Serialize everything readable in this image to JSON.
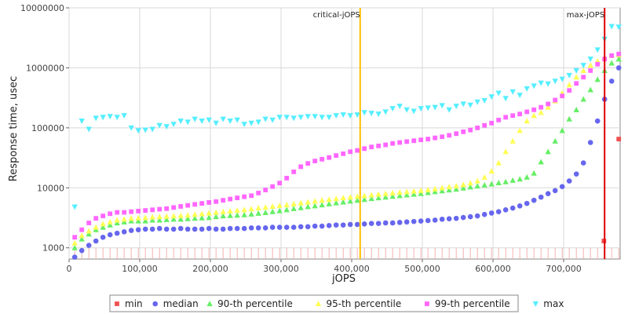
{
  "chart_data": {
    "type": "scatter",
    "xlabel": "jOPS",
    "ylabel": "Response time, usec",
    "x_scale": "linear",
    "y_scale": "log",
    "xlim": [
      0,
      780000
    ],
    "ylim": [
      650,
      10000000
    ],
    "x_ticks": [
      0,
      100000,
      200000,
      300000,
      400000,
      500000,
      600000,
      700000
    ],
    "x_tick_labels": [
      "0",
      "100,000",
      "200,000",
      "300,000",
      "400,000",
      "500,000",
      "600,000",
      "700,000"
    ],
    "y_ticks": [
      1000,
      10000,
      100000,
      1000000,
      10000000
    ],
    "y_tick_labels": [
      "1000",
      "10000",
      "100000",
      "1000000",
      "10000000"
    ],
    "grid": true,
    "legend_position": "bottom",
    "vertical_markers": [
      {
        "label": "critical-jOPS",
        "x": 412000,
        "color": "#ffc000"
      },
      {
        "label": "max-jOPS",
        "x": 758000,
        "color": "#dd0000"
      }
    ],
    "series": [
      {
        "name": "min",
        "color": "#f05050",
        "marker": "square",
        "x": [
          757000,
          778000
        ],
        "y": [
          1300,
          65000
        ]
      },
      {
        "name": "median",
        "color": "#6666ee",
        "marker": "circle",
        "x": [
          8000,
          18000,
          28000,
          38000,
          48000,
          58000,
          68000,
          78000,
          88000,
          98000,
          108000,
          118000,
          128000,
          138000,
          148000,
          158000,
          168000,
          178000,
          188000,
          198000,
          208000,
          218000,
          228000,
          238000,
          248000,
          258000,
          268000,
          278000,
          288000,
          298000,
          308000,
          318000,
          328000,
          338000,
          348000,
          358000,
          368000,
          378000,
          388000,
          398000,
          408000,
          418000,
          428000,
          438000,
          448000,
          458000,
          468000,
          478000,
          488000,
          498000,
          508000,
          518000,
          528000,
          538000,
          548000,
          558000,
          568000,
          578000,
          588000,
          598000,
          608000,
          618000,
          628000,
          638000,
          648000,
          658000,
          668000,
          678000,
          688000,
          698000,
          708000,
          718000,
          728000,
          738000,
          748000,
          758000,
          768000,
          778000
        ],
        "y": [
          700,
          900,
          1100,
          1300,
          1500,
          1650,
          1750,
          1850,
          1950,
          2000,
          2050,
          2050,
          2100,
          2050,
          2050,
          2100,
          2050,
          2050,
          2050,
          2100,
          2050,
          2050,
          2100,
          2100,
          2100,
          2150,
          2150,
          2150,
          2200,
          2200,
          2200,
          2200,
          2250,
          2250,
          2300,
          2300,
          2350,
          2400,
          2400,
          2450,
          2450,
          2500,
          2550,
          2550,
          2600,
          2600,
          2650,
          2700,
          2750,
          2800,
          2850,
          2900,
          3000,
          3050,
          3100,
          3200,
          3300,
          3400,
          3600,
          3800,
          4000,
          4300,
          4600,
          5000,
          5500,
          6200,
          7000,
          8000,
          9000,
          10500,
          13000,
          17000,
          26000,
          57000,
          130000,
          300000,
          600000,
          1000000
        ]
      },
      {
        "name": "90-th percentile",
        "color": "#66ee66",
        "marker": "triangle-up",
        "x": [
          8000,
          18000,
          28000,
          38000,
          48000,
          58000,
          68000,
          78000,
          88000,
          98000,
          108000,
          118000,
          128000,
          138000,
          148000,
          158000,
          168000,
          178000,
          188000,
          198000,
          208000,
          218000,
          228000,
          238000,
          248000,
          258000,
          268000,
          278000,
          288000,
          298000,
          308000,
          318000,
          328000,
          338000,
          348000,
          358000,
          368000,
          378000,
          388000,
          398000,
          408000,
          418000,
          428000,
          438000,
          448000,
          458000,
          468000,
          478000,
          488000,
          498000,
          508000,
          518000,
          528000,
          538000,
          548000,
          558000,
          568000,
          578000,
          588000,
          598000,
          608000,
          618000,
          628000,
          638000,
          648000,
          658000,
          668000,
          678000,
          688000,
          698000,
          708000,
          718000,
          728000,
          738000,
          748000,
          758000,
          768000,
          778000
        ],
        "y": [
          1000,
          1400,
          1700,
          2000,
          2200,
          2400,
          2600,
          2700,
          2800,
          2800,
          2800,
          2900,
          2900,
          2950,
          3000,
          3000,
          3050,
          3100,
          3150,
          3200,
          3300,
          3400,
          3450,
          3500,
          3550,
          3650,
          3750,
          3850,
          4000,
          4150,
          4300,
          4500,
          4650,
          4850,
          5000,
          5200,
          5400,
          5600,
          5800,
          6000,
          6200,
          6400,
          6600,
          6800,
          7000,
          7200,
          7400,
          7600,
          7800,
          8000,
          8300,
          8600,
          8900,
          9200,
          9500,
          9900,
          10300,
          10700,
          11100,
          11600,
          12100,
          12600,
          13300,
          14000,
          15000,
          17500,
          27000,
          40000,
          60000,
          90000,
          140000,
          200000,
          300000,
          430000,
          640000,
          900000,
          1200000,
          1400000
        ]
      },
      {
        "name": "95-th percentile",
        "color": "#ffff55",
        "marker": "triangle-up",
        "x": [
          8000,
          18000,
          28000,
          38000,
          48000,
          58000,
          68000,
          78000,
          88000,
          98000,
          108000,
          118000,
          128000,
          138000,
          148000,
          158000,
          168000,
          178000,
          188000,
          198000,
          208000,
          218000,
          228000,
          238000,
          248000,
          258000,
          268000,
          278000,
          288000,
          298000,
          308000,
          318000,
          328000,
          338000,
          348000,
          358000,
          368000,
          378000,
          388000,
          398000,
          408000,
          418000,
          428000,
          438000,
          448000,
          458000,
          468000,
          478000,
          488000,
          498000,
          508000,
          518000,
          528000,
          538000,
          548000,
          558000,
          568000,
          578000,
          588000,
          598000,
          608000,
          618000,
          628000,
          638000,
          648000,
          658000,
          668000,
          678000,
          688000,
          698000,
          708000,
          718000,
          728000,
          738000,
          748000,
          758000,
          768000,
          778000
        ],
        "y": [
          1200,
          1600,
          1900,
          2200,
          2500,
          2700,
          2900,
          3000,
          3100,
          3150,
          3200,
          3250,
          3300,
          3350,
          3400,
          3450,
          3500,
          3600,
          3700,
          3800,
          3900,
          4000,
          4100,
          4200,
          4300,
          4450,
          4600,
          4750,
          4900,
          5050,
          5200,
          5400,
          5600,
          5800,
          6000,
          6200,
          6400,
          6600,
          6800,
          7000,
          7200,
          7400,
          7600,
          7800,
          8000,
          8200,
          8400,
          8600,
          8800,
          9000,
          9300,
          9600,
          10000,
          10400,
          10800,
          11300,
          12000,
          13000,
          15000,
          19000,
          26000,
          40000,
          60000,
          90000,
          130000,
          160000,
          180000,
          220000,
          280000,
          380000,
          520000,
          700000,
          900000,
          1100000,
          1300000,
          1500000,
          1600000,
          1650000
        ]
      },
      {
        "name": "99-th percentile",
        "color": "#ff66ff",
        "marker": "square",
        "x": [
          8000,
          18000,
          28000,
          38000,
          48000,
          58000,
          68000,
          78000,
          88000,
          98000,
          108000,
          118000,
          128000,
          138000,
          148000,
          158000,
          168000,
          178000,
          188000,
          198000,
          208000,
          218000,
          228000,
          238000,
          248000,
          258000,
          268000,
          278000,
          288000,
          298000,
          308000,
          318000,
          328000,
          338000,
          348000,
          358000,
          368000,
          378000,
          388000,
          398000,
          408000,
          418000,
          428000,
          438000,
          448000,
          458000,
          468000,
          478000,
          488000,
          498000,
          508000,
          518000,
          528000,
          538000,
          548000,
          558000,
          568000,
          578000,
          588000,
          598000,
          608000,
          618000,
          628000,
          638000,
          648000,
          658000,
          668000,
          678000,
          688000,
          698000,
          708000,
          718000,
          728000,
          738000,
          748000,
          758000,
          768000,
          778000
        ],
        "y": [
          1500,
          2000,
          2600,
          3100,
          3400,
          3700,
          3900,
          3900,
          4000,
          4100,
          4200,
          4300,
          4400,
          4500,
          4700,
          4900,
          5100,
          5300,
          5500,
          5700,
          5900,
          6200,
          6500,
          6800,
          7100,
          7400,
          8200,
          9200,
          10500,
          12000,
          14500,
          18500,
          22500,
          25500,
          28000,
          30000,
          32000,
          34500,
          37000,
          40000,
          42000,
          45000,
          48000,
          50000,
          52000,
          55000,
          57000,
          59000,
          61000,
          63000,
          65000,
          68000,
          71000,
          75000,
          80000,
          86000,
          92000,
          100000,
          110000,
          120000,
          135000,
          150000,
          160000,
          170000,
          185000,
          200000,
          220000,
          250000,
          290000,
          340000,
          420000,
          550000,
          700000,
          900000,
          1150000,
          1400000,
          1600000,
          1700000
        ]
      },
      {
        "name": "max",
        "color": "#55eeff",
        "marker": "triangle-down",
        "x": [
          8000,
          18000,
          28000,
          38000,
          48000,
          58000,
          68000,
          78000,
          88000,
          98000,
          108000,
          118000,
          128000,
          138000,
          148000,
          158000,
          168000,
          178000,
          188000,
          198000,
          208000,
          218000,
          228000,
          238000,
          248000,
          258000,
          268000,
          278000,
          288000,
          298000,
          308000,
          318000,
          328000,
          338000,
          348000,
          358000,
          368000,
          378000,
          388000,
          398000,
          408000,
          418000,
          428000,
          438000,
          448000,
          458000,
          468000,
          478000,
          488000,
          498000,
          508000,
          518000,
          528000,
          538000,
          548000,
          558000,
          568000,
          578000,
          588000,
          598000,
          608000,
          618000,
          628000,
          638000,
          648000,
          658000,
          668000,
          678000,
          688000,
          698000,
          708000,
          718000,
          728000,
          738000,
          748000,
          758000,
          768000,
          778000
        ],
        "y": [
          4800,
          130000,
          95000,
          145000,
          150000,
          155000,
          150000,
          160000,
          100000,
          90000,
          92000,
          95000,
          110000,
          105000,
          115000,
          130000,
          125000,
          140000,
          130000,
          135000,
          120000,
          140000,
          130000,
          135000,
          115000,
          120000,
          125000,
          140000,
          135000,
          150000,
          150000,
          145000,
          150000,
          155000,
          155000,
          150000,
          150000,
          160000,
          165000,
          160000,
          165000,
          180000,
          175000,
          170000,
          185000,
          210000,
          230000,
          200000,
          190000,
          210000,
          215000,
          220000,
          235000,
          200000,
          230000,
          250000,
          240000,
          270000,
          285000,
          330000,
          380000,
          310000,
          400000,
          350000,
          450000,
          500000,
          560000,
          540000,
          600000,
          650000,
          750000,
          900000,
          1100000,
          1400000,
          2000000,
          3000000,
          4900000,
          4800000
        ]
      }
    ]
  }
}
